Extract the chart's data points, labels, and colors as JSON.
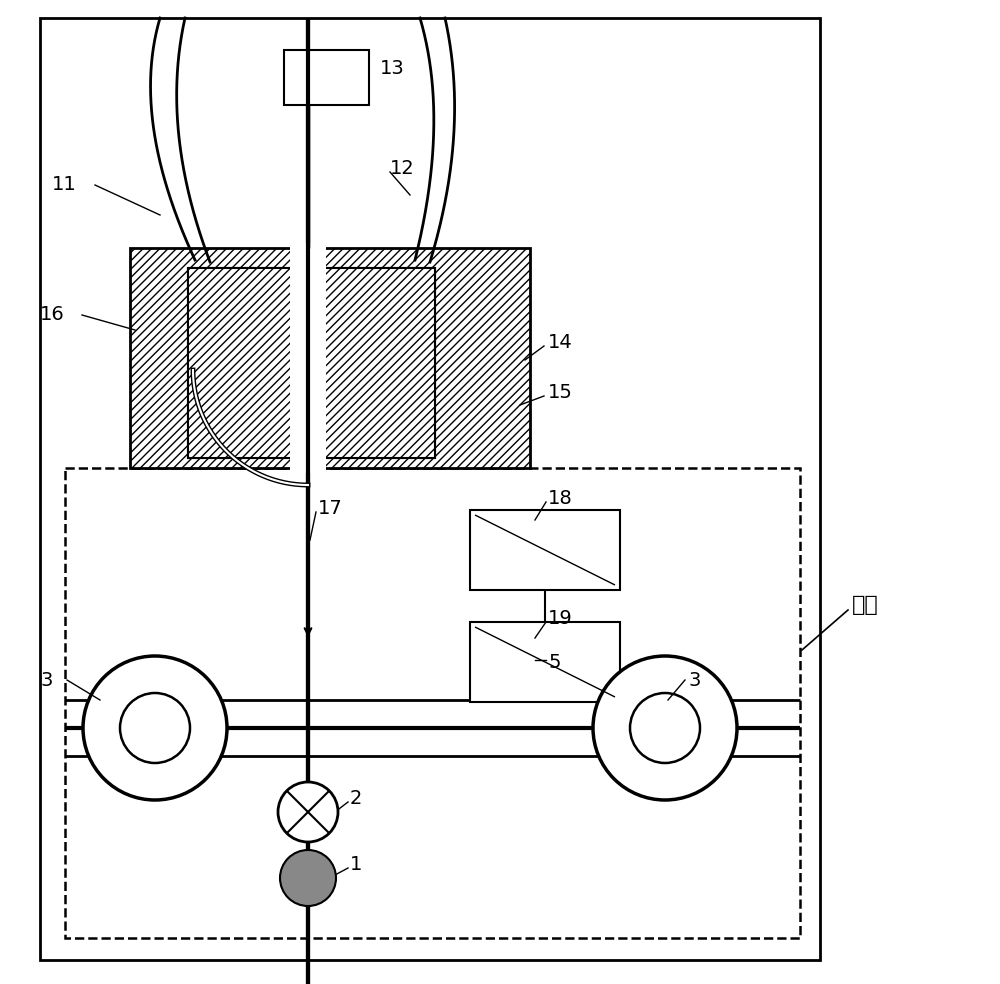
{
  "bg_color": "#ffffff",
  "zhuji_text": "主机",
  "figsize": [
    10.0,
    9.84
  ],
  "dpi": 100
}
